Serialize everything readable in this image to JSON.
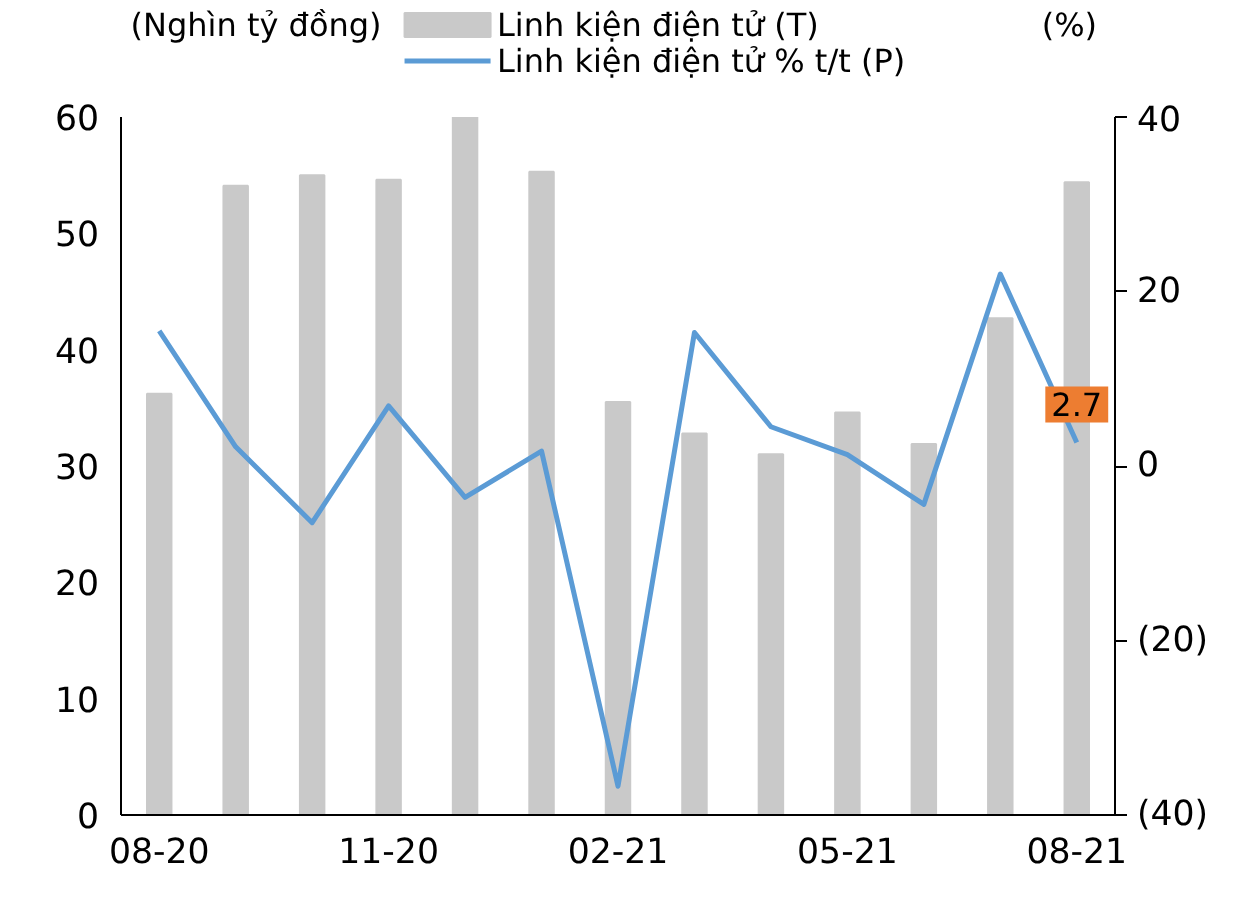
{
  "chart_data": {
    "type": "bar",
    "ylabel": "(Nghìn tỷ đồng)",
    "y2label": "(%)",
    "categories": [
      "08-20",
      null,
      null,
      "11-20",
      null,
      null,
      "02-21",
      null,
      null,
      "05-21",
      null,
      null,
      "08-21"
    ],
    "series": [
      {
        "name": "Linh kiện điện tử (T)",
        "color": "#c9c9c9",
        "values": [
          36.2,
          54.1,
          55.0,
          54.6,
          60.0,
          55.3,
          35.5,
          32.8,
          31.0,
          34.6,
          31.9,
          42.7,
          54.4
        ]
      },
      {
        "name": "Linh kiện điện tử % t/t (P)",
        "type": "line",
        "axis": "y2",
        "color": "#5b9bd5",
        "values": [
          15.5,
          2.2,
          -6.5,
          6.9,
          -3.6,
          1.7,
          -36.7,
          15.3,
          4.5,
          1.3,
          -4.4,
          22.0,
          2.7
        ],
        "value_labels": [
          null,
          null,
          null,
          null,
          null,
          null,
          null,
          null,
          null,
          null,
          null,
          null,
          "2.7"
        ]
      }
    ],
    "ylim": [
      0,
      60
    ],
    "yticks": [
      0,
      10,
      20,
      30,
      40,
      50,
      60
    ],
    "y2lim": [
      -40,
      40
    ],
    "y2ticks": [
      {
        "value": -40,
        "label": "(40)"
      },
      {
        "value": -20,
        "label": "(20)"
      },
      0,
      20,
      40
    ],
    "grid": false,
    "legend": "top"
  }
}
